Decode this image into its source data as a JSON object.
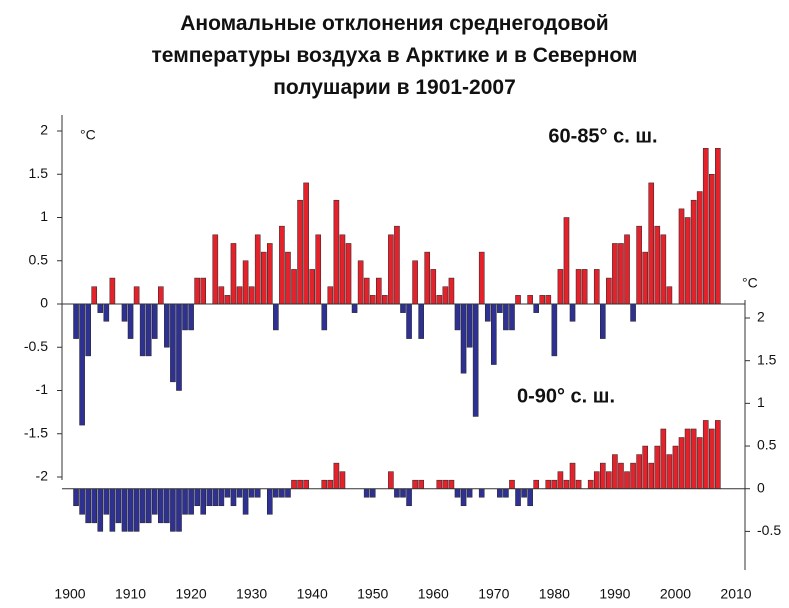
{
  "chart_data": {
    "type": "bar",
    "title": "Аномальные отклонения  среднегодовой температуры воздуха в Арктике и в Северном полушарии в 1901-2007",
    "y_label": "°C",
    "y2_label": "°C",
    "x": [
      1901,
      1902,
      1903,
      1904,
      1905,
      1906,
      1907,
      1908,
      1909,
      1910,
      1911,
      1912,
      1913,
      1914,
      1915,
      1916,
      1917,
      1918,
      1919,
      1920,
      1921,
      1922,
      1923,
      1924,
      1925,
      1926,
      1927,
      1928,
      1929,
      1930,
      1931,
      1932,
      1933,
      1934,
      1935,
      1936,
      1937,
      1938,
      1939,
      1940,
      1941,
      1942,
      1943,
      1944,
      1945,
      1946,
      1947,
      1948,
      1949,
      1950,
      1951,
      1952,
      1953,
      1954,
      1955,
      1956,
      1957,
      1958,
      1959,
      1960,
      1961,
      1962,
      1963,
      1964,
      1965,
      1966,
      1967,
      1968,
      1969,
      1970,
      1971,
      1972,
      1973,
      1974,
      1975,
      1976,
      1977,
      1978,
      1979,
      1980,
      1981,
      1982,
      1983,
      1984,
      1985,
      1986,
      1987,
      1988,
      1989,
      1990,
      1991,
      1992,
      1993,
      1994,
      1995,
      1996,
      1997,
      1998,
      1999,
      2000,
      2001,
      2002,
      2003,
      2004,
      2005,
      2006,
      2007
    ],
    "xlim": [
      1900,
      2010
    ],
    "xticks": [
      1900,
      1910,
      1920,
      1930,
      1940,
      1950,
      1960,
      1970,
      1980,
      1990,
      2000,
      2010
    ],
    "ylim": [
      -2,
      2
    ],
    "yticks": [
      2,
      1.5,
      1,
      0.5,
      0,
      -0.5,
      -1,
      -1.5,
      -2
    ],
    "y2lim": [
      -0.8,
      2
    ],
    "y2ticks": [
      2,
      1.5,
      1,
      0.5,
      0,
      -0.5
    ],
    "positive_color": "#e3222b",
    "negative_color": "#2e3192",
    "series": [
      {
        "name": "60-85° с. ш.",
        "values": [
          -0.4,
          -1.4,
          -0.6,
          0.2,
          -0.1,
          -0.2,
          0.3,
          0,
          -0.2,
          -0.4,
          0.2,
          -0.6,
          -0.6,
          -0.4,
          0.2,
          -0.5,
          -0.9,
          -1.0,
          -0.3,
          -0.3,
          0.3,
          0.3,
          0,
          0.8,
          0.2,
          0.1,
          0.7,
          0.2,
          0.5,
          0.2,
          0.8,
          0.6,
          0.7,
          -0.3,
          0.9,
          0.6,
          0.4,
          1.2,
          1.4,
          0.4,
          0.8,
          -0.3,
          0.2,
          1.2,
          0.8,
          0.7,
          -0.1,
          0.5,
          0.3,
          0.1,
          0.3,
          0.1,
          0.8,
          0.9,
          -0.1,
          -0.4,
          0.5,
          -0.4,
          0.6,
          0.4,
          0.1,
          0.2,
          0.3,
          -0.3,
          -0.8,
          -0.5,
          -1.3,
          0.6,
          -0.2,
          -0.7,
          -0.1,
          -0.3,
          -0.3,
          0.1,
          0,
          0.1,
          -0.1,
          0.1,
          0.1,
          -0.6,
          0.4,
          1.0,
          -0.2,
          0.4,
          0.4,
          0,
          0.4,
          -0.4,
          0.3,
          0.7,
          0.7,
          0.8,
          -0.2,
          0.9,
          0.6,
          1.4,
          0.9,
          0.8,
          0.2,
          0,
          1.1,
          1.0,
          1.2,
          1.3,
          1.8,
          1.5,
          1.8
        ]
      },
      {
        "name": "0-90° с. ш.",
        "axis": "y2",
        "values": [
          -0.2,
          -0.3,
          -0.4,
          -0.4,
          -0.5,
          -0.3,
          -0.5,
          -0.4,
          -0.5,
          -0.5,
          -0.5,
          -0.4,
          -0.4,
          -0.3,
          -0.4,
          -0.4,
          -0.5,
          -0.5,
          -0.3,
          -0.3,
          -0.2,
          -0.3,
          -0.2,
          -0.2,
          -0.2,
          -0.1,
          -0.2,
          -0.1,
          -0.3,
          -0.1,
          -0.1,
          0,
          -0.3,
          -0.1,
          -0.1,
          -0.1,
          0.1,
          0.1,
          0.1,
          0,
          0,
          0.1,
          0.1,
          0.3,
          0.2,
          0,
          0,
          0,
          -0.1,
          -0.1,
          0,
          0,
          0.2,
          -0.1,
          -0.1,
          -0.2,
          0.1,
          0.1,
          0,
          0,
          0.1,
          0.1,
          0.1,
          -0.1,
          -0.2,
          -0.1,
          0,
          -0.1,
          0,
          0,
          -0.1,
          -0.1,
          0.1,
          -0.2,
          -0.1,
          -0.2,
          0.1,
          0,
          0.1,
          0.1,
          0.2,
          0.1,
          0.3,
          0.1,
          0,
          0.1,
          0.2,
          0.3,
          0.2,
          0.4,
          0.3,
          0.2,
          0.3,
          0.4,
          0.5,
          0.3,
          0.5,
          0.7,
          0.4,
          0.5,
          0.6,
          0.7,
          0.7,
          0.6,
          0.8,
          0.7,
          0.8
        ]
      }
    ]
  }
}
